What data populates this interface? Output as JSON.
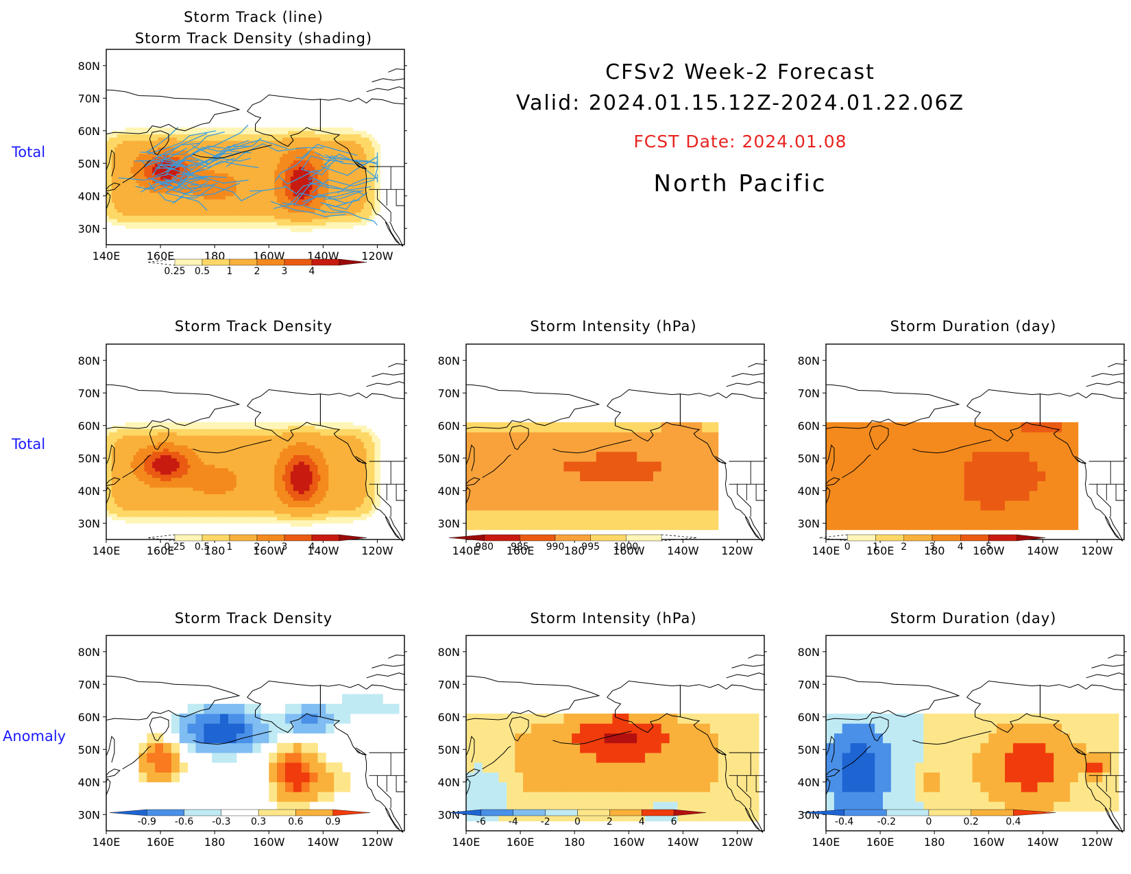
{
  "header": {
    "line1": "CFSv2 Week-2 Forecast",
    "line2": "Valid: 2024.01.15.12Z-2024.01.22.06Z",
    "fcst_date": "FCST Date: 2024.01.08",
    "region": "North Pacific"
  },
  "row_labels": {
    "row1": "Total",
    "row2": "Total",
    "row3": "Anomaly"
  },
  "axes": {
    "lon_ticks": [
      "140E",
      "160E",
      "180",
      "160W",
      "140W",
      "120W"
    ],
    "lat_ticks": [
      "30N",
      "40N",
      "50N",
      "60N",
      "70N",
      "80N"
    ]
  },
  "chart_data": [
    {
      "type": "heatmap",
      "title": "Storm Track (line)\nStorm Track Density (shading)",
      "row_label": "Total",
      "levels": [
        "0.25",
        "0.5",
        "1",
        "2",
        "3",
        "4"
      ],
      "colors": [
        "#fff5b6",
        "#fdd866",
        "#f9b13b",
        "#f48a1d",
        "#ea5a12",
        "#c81b10",
        "#9a0a0a"
      ],
      "features": [
        {
          "kind": "max",
          "lon": 162,
          "lat": 47,
          "level": 4
        },
        {
          "kind": "max",
          "lon": 212,
          "lat": 44,
          "level": 4
        }
      ],
      "tracks": true,
      "track_color": "#3a9bdc"
    },
    {
      "type": "heatmap",
      "title": "Storm Track Density",
      "row_label": "Total",
      "levels": [
        "0.25",
        "0.5",
        "1",
        "2",
        "3",
        "4"
      ],
      "colors": [
        "#fff5b6",
        "#fdd866",
        "#f9b13b",
        "#f48a1d",
        "#ea5a12",
        "#c81b10",
        "#9a0a0a"
      ],
      "features": [
        {
          "kind": "max",
          "lon": 162,
          "lat": 48,
          "level": 4
        },
        {
          "kind": "max",
          "lon": 212,
          "lat": 44,
          "level": 4
        }
      ]
    },
    {
      "type": "heatmap",
      "title": "Storm Intensity (hPa)",
      "levels": [
        "980",
        "985",
        "990",
        "995",
        "1000"
      ],
      "colors": [
        "#9a0a0a",
        "#c81b10",
        "#ea5a12",
        "#f9a23b",
        "#fdd866",
        "#fff5b6"
      ],
      "features": [
        {
          "kind": "min",
          "lon": 195,
          "lat": 46,
          "value": 988
        }
      ]
    },
    {
      "type": "heatmap",
      "title": "Storm Duration (day)",
      "levels": [
        "0",
        "1",
        "2",
        "3",
        "4",
        "5"
      ],
      "colors": [
        "#fff5b6",
        "#fdd866",
        "#f9b13b",
        "#f48a1d",
        "#ea5a12",
        "#c81b10",
        "#9a0a0a"
      ],
      "features": [
        {
          "kind": "max",
          "lon": 200,
          "lat": 42,
          "value": 3.6
        }
      ]
    },
    {
      "type": "heatmap",
      "title": "Storm Track Density",
      "row_label": "Anomaly",
      "levels": [
        "-0.9",
        "-0.6",
        "-0.3",
        "0.3",
        "0.6",
        "0.9"
      ],
      "colors": [
        "#1e64d2",
        "#4a90e8",
        "#7fbdf2",
        "#bfeaf4",
        "#ffffff",
        "#fde68a",
        "#f9b13b",
        "#f97a1f",
        "#f03c0c"
      ],
      "features": [
        {
          "kind": "min",
          "lon": 182,
          "lat": 55,
          "value": -0.9
        },
        {
          "kind": "max",
          "lon": 210,
          "lat": 42,
          "value": 0.9
        }
      ]
    },
    {
      "type": "heatmap",
      "title": "Storm Intensity (hPa)",
      "levels": [
        "-6",
        "-4",
        "-2",
        "0",
        "2",
        "4",
        "6"
      ],
      "colors": [
        "#1e64d2",
        "#4a90e8",
        "#7fbdf2",
        "#bfeaf4",
        "#fde68a",
        "#f9b13b",
        "#f03c0c",
        "#b51010"
      ],
      "features": [
        {
          "kind": "max",
          "lon": 195,
          "lat": 55,
          "value": 6
        }
      ]
    },
    {
      "type": "heatmap",
      "title": "Storm Duration (day)",
      "levels": [
        "-0.4",
        "-0.2",
        "0",
        "0.2",
        "0.4"
      ],
      "colors": [
        "#1e64d2",
        "#4a90e8",
        "#bfeaf4",
        "#fde68a",
        "#f9b13b",
        "#f03c0c"
      ],
      "features": [
        {
          "kind": "min",
          "lon": 150,
          "lat": 40,
          "value": -0.4
        },
        {
          "kind": "max",
          "lon": 215,
          "lat": 45,
          "value": 0.4
        }
      ]
    }
  ]
}
